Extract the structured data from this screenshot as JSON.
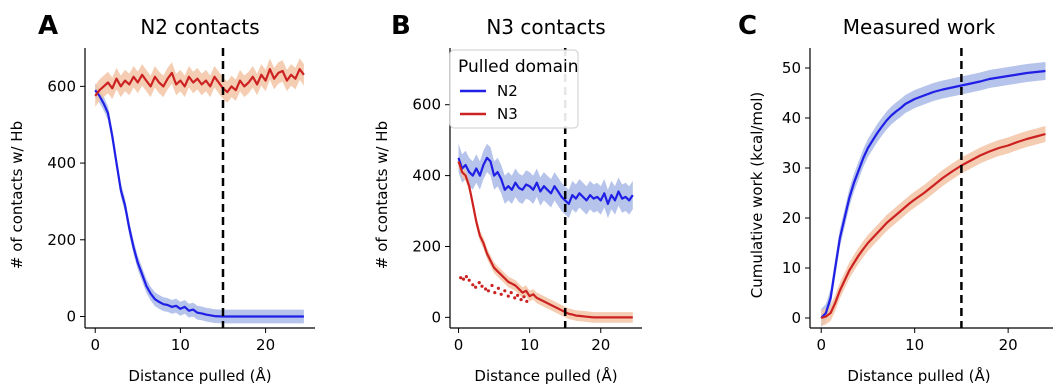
{
  "colors": {
    "N2": "#1f1fe6",
    "N3": "#cc2222",
    "N2_band": "#a9b8e6",
    "N3_band": "#f2c4a4",
    "vline": "#000000"
  },
  "chart_data": [
    {
      "type": "line",
      "panel_label": "A",
      "title": "N2 contacts",
      "xlabel": "Distance pulled (Å)",
      "ylabel": "# of contacts w/ Hb",
      "xlim": [
        -1.2,
        25.8
      ],
      "ylim": [
        -30,
        700
      ],
      "xticks": [
        0,
        10,
        20
      ],
      "yticks": [
        0,
        200,
        400,
        600
      ],
      "vline": 15,
      "series": [
        {
          "name": "N2",
          "color_key": "N2",
          "band": 18,
          "points": [
            [
              0,
              590
            ],
            [
              0.5,
              575
            ],
            [
              1,
              555
            ],
            [
              1.5,
              530
            ],
            [
              2,
              470
            ],
            [
              2.5,
              400
            ],
            [
              3,
              330
            ],
            [
              3.5,
              290
            ],
            [
              4,
              230
            ],
            [
              4.5,
              180
            ],
            [
              5,
              140
            ],
            [
              5.5,
              110
            ],
            [
              6,
              80
            ],
            [
              6.5,
              60
            ],
            [
              7,
              45
            ],
            [
              7.5,
              38
            ],
            [
              8,
              32
            ],
            [
              8.5,
              30
            ],
            [
              9,
              25
            ],
            [
              9.5,
              28
            ],
            [
              10,
              20
            ],
            [
              10.5,
              25
            ],
            [
              11,
              15
            ],
            [
              11.5,
              18
            ],
            [
              12,
              10
            ],
            [
              12.5,
              8
            ],
            [
              13,
              5
            ],
            [
              13.5,
              3
            ],
            [
              14,
              1
            ],
            [
              15,
              0
            ],
            [
              17,
              0
            ],
            [
              20,
              0
            ],
            [
              24.5,
              0
            ]
          ]
        },
        {
          "name": "N3",
          "color_key": "N3",
          "band": 28,
          "points": [
            [
              0,
              575
            ],
            [
              0.5,
              590
            ],
            [
              1,
              600
            ],
            [
              1.5,
              610
            ],
            [
              2,
              595
            ],
            [
              2.5,
              620
            ],
            [
              3,
              600
            ],
            [
              3.5,
              615
            ],
            [
              4,
              605
            ],
            [
              4.5,
              625
            ],
            [
              5,
              610
            ],
            [
              5.5,
              630
            ],
            [
              6,
              615
            ],
            [
              6.5,
              600
            ],
            [
              7,
              625
            ],
            [
              7.5,
              610
            ],
            [
              8,
              600
            ],
            [
              8.5,
              620
            ],
            [
              9,
              635
            ],
            [
              9.5,
              605
            ],
            [
              10,
              615
            ],
            [
              10.5,
              600
            ],
            [
              11,
              625
            ],
            [
              11.5,
              610
            ],
            [
              12,
              620
            ],
            [
              12.5,
              605
            ],
            [
              13,
              615
            ],
            [
              13.5,
              600
            ],
            [
              14,
              625
            ],
            [
              14.5,
              610
            ],
            [
              15,
              595
            ],
            [
              15.5,
              585
            ],
            [
              16,
              600
            ],
            [
              16.5,
              590
            ],
            [
              17,
              615
            ],
            [
              17.5,
              600
            ],
            [
              18,
              610
            ],
            [
              18.5,
              625
            ],
            [
              19,
              605
            ],
            [
              19.5,
              630
            ],
            [
              20,
              615
            ],
            [
              20.5,
              645
            ],
            [
              21,
              620
            ],
            [
              21.5,
              635
            ],
            [
              22,
              640
            ],
            [
              22.5,
              615
            ],
            [
              23,
              630
            ],
            [
              23.5,
              620
            ],
            [
              24,
              645
            ],
            [
              24.5,
              630
            ]
          ]
        }
      ]
    },
    {
      "type": "line",
      "panel_label": "B",
      "title": "N3 contacts",
      "xlabel": "Distance pulled (Å)",
      "ylabel": "# of contacts w/ Hb",
      "xlim": [
        -1.2,
        25.8
      ],
      "ylim": [
        -30,
        760
      ],
      "xticks": [
        0,
        10,
        20
      ],
      "yticks": [
        0,
        200,
        400,
        600
      ],
      "vline": 15,
      "legend": {
        "title": "Pulled domain",
        "entries": [
          "N2",
          "N3"
        ],
        "position": "top-left"
      },
      "series": [
        {
          "name": "N2",
          "color_key": "N2",
          "band": 40,
          "points": [
            [
              0,
              450
            ],
            [
              0.5,
              420
            ],
            [
              1,
              430
            ],
            [
              1.5,
              410
            ],
            [
              2,
              400
            ],
            [
              2.5,
              420
            ],
            [
              3,
              400
            ],
            [
              3.5,
              430
            ],
            [
              4,
              450
            ],
            [
              4.5,
              440
            ],
            [
              5,
              400
            ],
            [
              5.5,
              410
            ],
            [
              6,
              390
            ],
            [
              6.5,
              360
            ],
            [
              7,
              370
            ],
            [
              7.5,
              360
            ],
            [
              8,
              380
            ],
            [
              8.5,
              365
            ],
            [
              9,
              360
            ],
            [
              9.5,
              375
            ],
            [
              10,
              370
            ],
            [
              10.5,
              360
            ],
            [
              11,
              380
            ],
            [
              11.5,
              355
            ],
            [
              12,
              370
            ],
            [
              12.5,
              360
            ],
            [
              13,
              350
            ],
            [
              13.5,
              370
            ],
            [
              14,
              355
            ],
            [
              14.5,
              340
            ],
            [
              15,
              330
            ],
            [
              15.5,
              320
            ],
            [
              16,
              345
            ],
            [
              16.5,
              335
            ],
            [
              17,
              350
            ],
            [
              17.5,
              340
            ],
            [
              18,
              330
            ],
            [
              18.5,
              345
            ],
            [
              19,
              335
            ],
            [
              19.5,
              340
            ],
            [
              20,
              330
            ],
            [
              20.5,
              350
            ],
            [
              21,
              320
            ],
            [
              21.5,
              345
            ],
            [
              22,
              330
            ],
            [
              22.5,
              355
            ],
            [
              23,
              335
            ],
            [
              23.5,
              340
            ],
            [
              24,
              330
            ],
            [
              24.5,
              345
            ]
          ]
        },
        {
          "name": "N3",
          "color_key": "N3",
          "band": 15,
          "points": [
            [
              0,
              440
            ],
            [
              0.5,
              410
            ],
            [
              1,
              400
            ],
            [
              1.5,
              370
            ],
            [
              2,
              320
            ],
            [
              2.5,
              270
            ],
            [
              3,
              230
            ],
            [
              3.5,
              210
            ],
            [
              4,
              180
            ],
            [
              4.5,
              160
            ],
            [
              5,
              140
            ],
            [
              5.5,
              130
            ],
            [
              6,
              120
            ],
            [
              6.5,
              110
            ],
            [
              7,
              100
            ],
            [
              7.5,
              95
            ],
            [
              8,
              90
            ],
            [
              8.5,
              80
            ],
            [
              9,
              70
            ],
            [
              9.5,
              75
            ],
            [
              10,
              60
            ],
            [
              10.5,
              65
            ],
            [
              11,
              55
            ],
            [
              11.5,
              50
            ],
            [
              12,
              45
            ],
            [
              12.5,
              40
            ],
            [
              13,
              35
            ],
            [
              13.5,
              30
            ],
            [
              14,
              25
            ],
            [
              14.5,
              20
            ],
            [
              15,
              15
            ],
            [
              15.5,
              10
            ],
            [
              16,
              8
            ],
            [
              16.5,
              5
            ],
            [
              17,
              4
            ],
            [
              18,
              2
            ],
            [
              19,
              0
            ],
            [
              24.5,
              0
            ]
          ]
        }
      ],
      "dots": {
        "color_key": "N3",
        "points": [
          [
            0.3,
            112
          ],
          [
            0.7,
            108
          ],
          [
            1.1,
            115
          ],
          [
            1.5,
            105
          ],
          [
            2,
            92
          ],
          [
            2.4,
            85
          ],
          [
            2.9,
            98
          ],
          [
            3.3,
            88
          ],
          [
            3.8,
            80
          ],
          [
            4.2,
            75
          ],
          [
            4.7,
            90
          ],
          [
            5.1,
            70
          ],
          [
            5.6,
            82
          ],
          [
            6,
            65
          ],
          [
            6.5,
            75
          ],
          [
            7,
            60
          ],
          [
            7.4,
            70
          ],
          [
            7.9,
            55
          ],
          [
            8.3,
            62
          ],
          [
            8.8,
            50
          ],
          [
            9.2,
            58
          ],
          [
            9.6,
            45
          ]
        ]
      }
    },
    {
      "type": "line",
      "panel_label": "C",
      "title": "Measured work",
      "xlabel": "Distance pulled (Å)",
      "ylabel": "Cumulative work (kcal/mol)",
      "xlim": [
        -1.2,
        24.8
      ],
      "ylim": [
        -2,
        54
      ],
      "xticks": [
        0,
        10,
        20
      ],
      "yticks": [
        0,
        10,
        20,
        30,
        40,
        50
      ],
      "vline": 15,
      "series": [
        {
          "name": "N2",
          "color_key": "N2",
          "band": 1.8,
          "points": [
            [
              0,
              0
            ],
            [
              0.5,
              1
            ],
            [
              1,
              4
            ],
            [
              1.5,
              10
            ],
            [
              2,
              16
            ],
            [
              2.5,
              20
            ],
            [
              3,
              24
            ],
            [
              3.5,
              27
            ],
            [
              4,
              29.5
            ],
            [
              4.5,
              32
            ],
            [
              5,
              34
            ],
            [
              5.5,
              35.5
            ],
            [
              6,
              37
            ],
            [
              6.5,
              38.3
            ],
            [
              7,
              39.5
            ],
            [
              7.5,
              40.5
            ],
            [
              8,
              41.3
            ],
            [
              8.5,
              42
            ],
            [
              9,
              42.8
            ],
            [
              9.5,
              43.3
            ],
            [
              10,
              43.8
            ],
            [
              11,
              44.5
            ],
            [
              12,
              45.2
            ],
            [
              13,
              45.7
            ],
            [
              14,
              46.1
            ],
            [
              15,
              46.5
            ],
            [
              16,
              46.9
            ],
            [
              17,
              47.3
            ],
            [
              18,
              47.8
            ],
            [
              19,
              48.1
            ],
            [
              20,
              48.4
            ],
            [
              21,
              48.7
            ],
            [
              22,
              49
            ],
            [
              23,
              49.2
            ],
            [
              24,
              49.4
            ]
          ]
        },
        {
          "name": "N3",
          "color_key": "N3",
          "band": 1.6,
          "points": [
            [
              0,
              0
            ],
            [
              0.5,
              0.3
            ],
            [
              1,
              1
            ],
            [
              1.5,
              3
            ],
            [
              2,
              5.5
            ],
            [
              2.5,
              7.5
            ],
            [
              3,
              9.5
            ],
            [
              3.5,
              11
            ],
            [
              4,
              12.5
            ],
            [
              4.5,
              13.8
            ],
            [
              5,
              15
            ],
            [
              5.5,
              16
            ],
            [
              6,
              17
            ],
            [
              6.5,
              18
            ],
            [
              7,
              19
            ],
            [
              7.5,
              19.8
            ],
            [
              8,
              20.6
            ],
            [
              8.5,
              21.4
            ],
            [
              9,
              22.2
            ],
            [
              9.5,
              23
            ],
            [
              10,
              23.7
            ],
            [
              11,
              25
            ],
            [
              12,
              26.5
            ],
            [
              13,
              28
            ],
            [
              14,
              29.3
            ],
            [
              15,
              30.5
            ],
            [
              16,
              31.5
            ],
            [
              17,
              32.5
            ],
            [
              18,
              33.3
            ],
            [
              19,
              34
            ],
            [
              20,
              34.5
            ],
            [
              21,
              35.2
            ],
            [
              22,
              35.8
            ],
            [
              23,
              36.3
            ],
            [
              24,
              36.8
            ]
          ]
        }
      ]
    }
  ]
}
